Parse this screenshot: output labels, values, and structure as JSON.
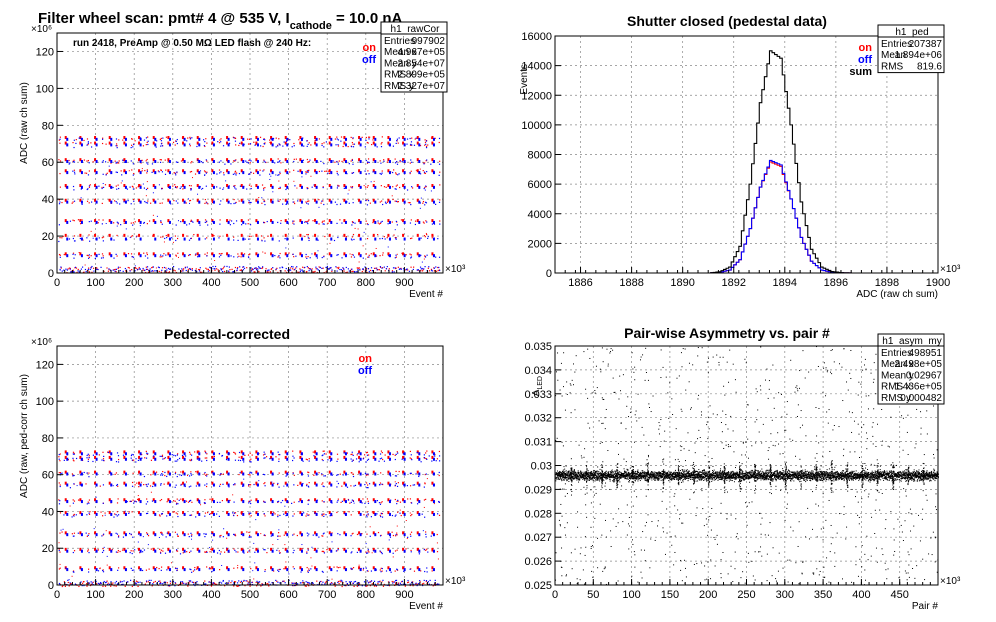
{
  "main_title": {
    "prefix": "Filter wheel scan: pmt#   4 @   535 V, I",
    "sub": "cathode",
    "suffix": " = 10.0 nA"
  },
  "legend": {
    "on": "on",
    "off": "off",
    "sum": "sum"
  },
  "colors": {
    "on": "#ff0000",
    "off": "#0000ff",
    "sum": "#000000",
    "grid": "#888888"
  },
  "chart_data": [
    {
      "id": "raw",
      "type": "scatter",
      "title": "",
      "annotation": "run 2418, PreAmp @ 0.50 MΩ   LED flash @  240 Hz:",
      "xlabel": "Event #",
      "ylabel": "ADC (raw ch sum)",
      "x_exponent": "×10³",
      "y_exponent": "×10⁶",
      "xlim": [
        0,
        1000
      ],
      "ylim": [
        0,
        130
      ],
      "xticks": [
        0,
        100,
        200,
        300,
        400,
        500,
        600,
        700,
        800,
        900
      ],
      "yticks": [
        0,
        20,
        40,
        60,
        80,
        100,
        120
      ],
      "series": [
        {
          "name": "on",
          "levels": [
            2,
            10,
            20,
            28,
            39,
            47,
            55,
            61,
            70,
            73
          ]
        },
        {
          "name": "off",
          "levels": [
            2,
            9,
            18,
            27,
            38,
            46,
            54,
            60,
            69,
            72
          ]
        }
      ],
      "stats": {
        "name": "h1_raw",
        "rows": [
          [
            "Entries",
            "997902"
          ],
          [
            "Mean x",
            "4.99e+05"
          ],
          [
            "Mean y",
            "2.741e+07"
          ],
          [
            "RMS x",
            "2.881e+05"
          ],
          [
            "RMS y",
            "2.369e+07"
          ]
        ]
      }
    },
    {
      "id": "ped",
      "type": "line",
      "title": "Shutter closed (pedestal data)",
      "xlabel": "ADC (raw ch sum)",
      "ylabel": "Events",
      "x_exponent": "×10³",
      "xlim": [
        1885,
        1900
      ],
      "ylim": [
        0,
        16000
      ],
      "xticks": [
        1886,
        1888,
        1890,
        1892,
        1894,
        1896,
        1898,
        1900
      ],
      "yticks": [
        0,
        2000,
        4000,
        6000,
        8000,
        10000,
        12000,
        14000,
        16000
      ],
      "x": [
        1891.0,
        1891.4,
        1891.8,
        1892.2,
        1892.6,
        1893.0,
        1893.4,
        1893.8,
        1894.2,
        1894.6,
        1895.0,
        1895.4,
        1895.8,
        1896.2,
        1896.6
      ],
      "series": [
        {
          "name": "on",
          "values": [
            0,
            40,
            200,
            900,
            3000,
            5800,
            7500,
            7200,
            5000,
            2400,
            800,
            200,
            50,
            10,
            0
          ]
        },
        {
          "name": "off",
          "values": [
            0,
            40,
            200,
            900,
            3000,
            5800,
            7600,
            7300,
            5000,
            2400,
            800,
            200,
            50,
            10,
            0
          ]
        },
        {
          "name": "sum",
          "values": [
            0,
            80,
            400,
            1800,
            6000,
            11500,
            15000,
            14500,
            10000,
            4800,
            1600,
            400,
            100,
            20,
            0
          ]
        }
      ],
      "stats": {
        "name": "h1_ped",
        "rows": [
          [
            "Entries",
            "207387"
          ],
          [
            "Mean",
            "1.894e+06"
          ],
          [
            "RMS",
            "819.6"
          ]
        ]
      }
    },
    {
      "id": "rawCor",
      "type": "scatter",
      "title": "Pedestal-corrected",
      "xlabel": "Event #",
      "ylabel": "ADC (raw, ped-corr ch sum)",
      "x_exponent": "×10³",
      "y_exponent": "×10⁶",
      "xlim": [
        0,
        1000
      ],
      "ylim": [
        0,
        130
      ],
      "xticks": [
        0,
        100,
        200,
        300,
        400,
        500,
        600,
        700,
        800,
        900
      ],
      "yticks": [
        0,
        20,
        40,
        60,
        80,
        100,
        120
      ],
      "series": [
        {
          "name": "on",
          "levels": [
            1,
            9,
            19,
            28,
            39,
            46,
            55,
            61,
            69,
            72
          ]
        },
        {
          "name": "off",
          "levels": [
            1,
            8,
            18,
            27,
            38,
            45,
            54,
            60,
            68,
            71
          ]
        }
      ],
      "stats": {
        "name": "h1_rawCor",
        "rows": [
          [
            "Entries",
            "997902"
          ],
          [
            "Mean x",
            "4.967e+05"
          ],
          [
            "Mean y",
            "2.854e+07"
          ],
          [
            "RMS x",
            "2.899e+05"
          ],
          [
            "RMS y",
            "2.327e+07"
          ]
        ]
      }
    },
    {
      "id": "asym",
      "type": "scatter",
      "title": "Pair-wise Asymmetry vs. pair #",
      "xlabel": "Pair #",
      "ylabel": "A_LED",
      "x_exponent": "×10³",
      "xlim": [
        0,
        500
      ],
      "ylim": [
        0.025,
        0.035
      ],
      "xticks": [
        0,
        50,
        100,
        150,
        200,
        250,
        300,
        350,
        400,
        450
      ],
      "yticks": [
        0.025,
        0.026,
        0.027,
        0.028,
        0.029,
        0.03,
        0.031,
        0.032,
        0.033,
        0.034,
        0.035
      ],
      "center": 0.0296,
      "spike_period": 20,
      "stats": {
        "name": "h1_asym_my",
        "rows": [
          [
            "Entries",
            "498951"
          ],
          [
            "Mean x",
            "2.498e+05"
          ],
          [
            "Mean y",
            "0.02967"
          ],
          [
            "RMS x",
            "1.436e+05"
          ],
          [
            "RMS y",
            "0.000482"
          ]
        ]
      }
    }
  ]
}
